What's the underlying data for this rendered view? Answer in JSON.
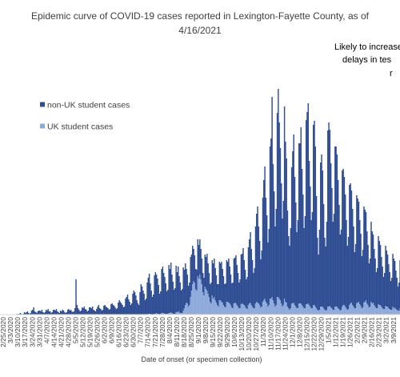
{
  "chart_data": {
    "type": "stacked_bar",
    "title": [
      "Epidemic curve of COVID-19 cases reported in Lexington-Fayette County, as of",
      "4/16/2021"
    ],
    "annotation": [
      "Likely to increase",
      "delays in tes",
      "r"
    ],
    "x_label": "Date of onset (or specimen collection)",
    "ylim": [
      0,
      300
    ],
    "categories": [
      "2/25/2020",
      null,
      null,
      null,
      null,
      null,
      null,
      "3/3/2020",
      null,
      null,
      null,
      null,
      null,
      null,
      "3/10/2020",
      null,
      null,
      null,
      null,
      null,
      null,
      "3/17/2020",
      null,
      null,
      null,
      null,
      null,
      null,
      "3/24/2020",
      null,
      null,
      null,
      null,
      null,
      null,
      "3/31/2020",
      null,
      null,
      null,
      null,
      null,
      null,
      "4/7/2020",
      null,
      null,
      null,
      null,
      null,
      null,
      "4/14/2020",
      null,
      null,
      null,
      null,
      null,
      null,
      "4/21/2020",
      null,
      null,
      null,
      null,
      null,
      null,
      "4/28/2020",
      null,
      null,
      null,
      null,
      null,
      null,
      "5/5/2020",
      null,
      null,
      null,
      null,
      null,
      null,
      "5/12/2020",
      null,
      null,
      null,
      null,
      null,
      null,
      "5/19/2020",
      null,
      null,
      null,
      null,
      null,
      null,
      "5/26/2020",
      null,
      null,
      null,
      null,
      null,
      null,
      "6/2/2020",
      null,
      null,
      null,
      null,
      null,
      null,
      "6/9/2020",
      null,
      null,
      null,
      null,
      null,
      null,
      "6/16/2020",
      null,
      null,
      null,
      null,
      null,
      null,
      "6/23/2020",
      null,
      null,
      null,
      null,
      null,
      null,
      "6/30/2020",
      null,
      null,
      null,
      null,
      null,
      null,
      "7/7/2020",
      null,
      null,
      null,
      null,
      null,
      null,
      "7/14/2020",
      null,
      null,
      null,
      null,
      null,
      null,
      "7/21/2020",
      null,
      null,
      null,
      null,
      null,
      null,
      "7/28/2020",
      null,
      null,
      null,
      null,
      null,
      null,
      "8/4/2020",
      null,
      null,
      null,
      null,
      null,
      null,
      "8/11/2020",
      null,
      null,
      null,
      null,
      null,
      null,
      "8/18/2020",
      null,
      null,
      null,
      null,
      null,
      null,
      "8/25/2020",
      null,
      null,
      null,
      null,
      null,
      null,
      "9/1/2020",
      null,
      null,
      null,
      null,
      null,
      null,
      "9/8/2020",
      null,
      null,
      null,
      null,
      null,
      null,
      "9/15/2020",
      null,
      null,
      null,
      null,
      null,
      null,
      "9/22/2020",
      null,
      null,
      null,
      null,
      null,
      null,
      "9/29/2020",
      null,
      null,
      null,
      null,
      null,
      null,
      "10/6/2020",
      null,
      null,
      null,
      null,
      null,
      null,
      "10/13/2020",
      null,
      null,
      null,
      null,
      null,
      null,
      "10/20/2020",
      null,
      null,
      null,
      null,
      null,
      null,
      "10/27/2020",
      null,
      null,
      null,
      null,
      null,
      null,
      "11/3/2020",
      null,
      null,
      null,
      null,
      null,
      null,
      "11/10/2020",
      null,
      null,
      null,
      null,
      null,
      null,
      "11/17/2020",
      null,
      null,
      null,
      null,
      null,
      null,
      "11/24/2020",
      null,
      null,
      null,
      null,
      null,
      null,
      "12/1/2020",
      null,
      null,
      null,
      null,
      null,
      null,
      "12/8/2020",
      null,
      null,
      null,
      null,
      null,
      null,
      "12/15/2020",
      null,
      null,
      null,
      null,
      null,
      null,
      "12/22/2020",
      null,
      null,
      null,
      null,
      null,
      null,
      "12/29/2020",
      null,
      null,
      null,
      null,
      null,
      null,
      "1/5/2021",
      null,
      null,
      null,
      null,
      null,
      null,
      "1/12/2021",
      null,
      null,
      null,
      null,
      null,
      null,
      "1/19/2021",
      null,
      null,
      null,
      null,
      null,
      null,
      "1/26/2021",
      null,
      null,
      null,
      null,
      null,
      null,
      "2/2/2021",
      null,
      null,
      null,
      null,
      null,
      null,
      "2/9/2021",
      null,
      null,
      null,
      null,
      null,
      null,
      "2/16/2021",
      null,
      null,
      null,
      null,
      null,
      null,
      "2/23/2021",
      null,
      null,
      null,
      null,
      null,
      null,
      "3/2/2021",
      null,
      null,
      null,
      null,
      null,
      null,
      "3/9/2021",
      null,
      null,
      null,
      null,
      null,
      null
    ],
    "series": [
      {
        "name": "non-UK student cases",
        "color": "#2f4d93",
        "values": [
          0,
          0,
          0,
          0,
          0,
          0,
          0,
          0,
          0,
          0,
          0,
          0,
          0,
          1,
          0,
          1,
          2,
          1,
          0,
          1,
          3,
          2,
          3,
          4,
          2,
          1,
          2,
          5,
          6,
          9,
          4,
          3,
          2,
          4,
          5,
          5,
          4,
          6,
          3,
          2,
          3,
          6,
          5,
          7,
          4,
          4,
          2,
          3,
          6,
          6,
          5,
          7,
          4,
          3,
          2,
          5,
          4,
          6,
          5,
          3,
          2,
          3,
          6,
          7,
          5,
          6,
          4,
          3,
          4,
          8,
          44,
          12,
          8,
          6,
          4,
          5,
          9,
          8,
          10,
          7,
          6,
          4,
          5,
          9,
          9,
          8,
          10,
          6,
          5,
          4,
          7,
          10,
          12,
          8,
          7,
          5,
          6,
          11,
          12,
          10,
          9,
          8,
          6,
          7,
          13,
          14,
          12,
          11,
          9,
          7,
          8,
          15,
          18,
          16,
          14,
          12,
          9,
          10,
          20,
          22,
          25,
          19,
          16,
          12,
          14,
          26,
          30,
          28,
          24,
          18,
          14,
          12,
          28,
          38,
          35,
          30,
          26,
          18,
          20,
          40,
          45,
          50,
          38,
          30,
          22,
          25,
          48,
          52,
          48,
          44,
          36,
          26,
          28,
          55,
          58,
          50,
          46,
          38,
          28,
          30,
          60,
          55,
          62,
          48,
          40,
          30,
          32,
          58,
          50,
          56,
          45,
          38,
          28,
          30,
          54,
          48,
          52,
          42,
          36,
          26,
          28,
          50,
          45,
          48,
          40,
          34,
          25,
          26,
          46,
          42,
          44,
          38,
          32,
          24,
          22,
          40,
          40,
          46,
          38,
          30,
          22,
          26,
          44,
          44,
          48,
          40,
          34,
          26,
          28,
          48,
          46,
          50,
          42,
          36,
          28,
          30,
          52,
          50,
          55,
          46,
          38,
          30,
          32,
          56,
          56,
          60,
          50,
          42,
          32,
          36,
          62,
          62,
          70,
          56,
          46,
          36,
          40,
          72,
          80,
          88,
          70,
          58,
          44,
          50,
          96,
          110,
          120,
          96,
          80,
          60,
          70,
          130,
          150,
          165,
          130,
          110,
          80,
          95,
          190,
          200,
          250,
          170,
          140,
          100,
          120,
          230,
          260,
          220,
          190,
          150,
          110,
          130,
          240,
          200,
          180,
          120,
          90,
          80,
          100,
          170,
          190,
          210,
          160,
          130,
          95,
          110,
          200,
          200,
          220,
          170,
          140,
          100,
          115,
          230,
          240,
          250,
          180,
          150,
          110,
          120,
          225,
          230,
          200,
          140,
          90,
          70,
          100,
          180,
          190,
          170,
          130,
          90,
          80,
          110,
          220,
          230,
          220,
          180,
          150,
          110,
          120,
          200,
          200,
          190,
          160,
          130,
          95,
          100,
          170,
          170,
          160,
          140,
          110,
          80,
          90,
          150,
          150,
          140,
          120,
          100,
          70,
          80,
          135,
          130,
          125,
          105,
          90,
          65,
          72,
          120,
          115,
          110,
          90,
          75,
          55,
          60,
          100,
          90,
          85,
          70,
          60,
          45,
          50,
          85,
          80,
          75,
          62,
          52,
          40,
          45,
          75,
          70,
          65,
          55,
          46,
          36,
          40,
          66,
          62,
          58,
          48,
          40,
          30,
          35,
          60
        ]
      },
      {
        "name": "UK student cases",
        "color": "#8eaadb",
        "values": [
          0,
          0,
          0,
          0,
          0,
          0,
          0,
          0,
          0,
          0,
          0,
          0,
          0,
          0,
          0,
          0,
          0,
          0,
          0,
          0,
          0,
          0,
          0,
          0,
          0,
          0,
          0,
          0,
          0,
          0,
          0,
          0,
          0,
          0,
          0,
          0,
          0,
          0,
          0,
          0,
          0,
          0,
          0,
          0,
          0,
          0,
          0,
          0,
          0,
          0,
          0,
          0,
          0,
          0,
          0,
          0,
          0,
          0,
          0,
          0,
          0,
          0,
          0,
          0,
          0,
          0,
          0,
          0,
          0,
          0,
          0,
          0,
          0,
          0,
          0,
          0,
          0,
          0,
          0,
          0,
          0,
          0,
          0,
          0,
          0,
          0,
          0,
          0,
          0,
          0,
          0,
          0,
          0,
          0,
          0,
          0,
          0,
          0,
          0,
          0,
          0,
          0,
          0,
          0,
          0,
          0,
          0,
          0,
          0,
          0,
          0,
          0,
          0,
          0,
          0,
          0,
          0,
          0,
          0,
          0,
          0,
          0,
          0,
          0,
          0,
          0,
          0,
          0,
          0,
          0,
          0,
          0,
          0,
          0,
          0,
          0,
          0,
          0,
          0,
          0,
          1,
          1,
          1,
          0,
          0,
          0,
          1,
          1,
          2,
          1,
          1,
          0,
          1,
          2,
          2,
          2,
          1,
          1,
          1,
          1,
          2,
          2,
          3,
          2,
          1,
          1,
          1,
          3,
          3,
          4,
          3,
          2,
          2,
          2,
          5,
          8,
          12,
          15,
          14,
          10,
          12,
          22,
          30,
          38,
          42,
          40,
          32,
          30,
          48,
          45,
          50,
          44,
          38,
          28,
          24,
          35,
          32,
          30,
          26,
          22,
          16,
          14,
          24,
          20,
          22,
          18,
          15,
          12,
          10,
          18,
          18,
          16,
          15,
          12,
          10,
          9,
          16,
          16,
          15,
          14,
          12,
          9,
          8,
          14,
          15,
          14,
          12,
          10,
          8,
          8,
          13,
          14,
          13,
          12,
          10,
          8,
          7,
          12,
          14,
          15,
          12,
          10,
          8,
          8,
          14,
          16,
          15,
          14,
          12,
          9,
          10,
          16,
          18,
          20,
          16,
          14,
          10,
          12,
          20,
          20,
          22,
          18,
          14,
          10,
          12,
          22,
          22,
          20,
          18,
          14,
          10,
          12,
          20,
          16,
          15,
          10,
          8,
          6,
          8,
          14,
          14,
          15,
          12,
          10,
          8,
          8,
          14,
          14,
          14,
          12,
          10,
          8,
          8,
          13,
          13,
          14,
          12,
          10,
          8,
          8,
          12,
          12,
          10,
          8,
          6,
          5,
          6,
          10,
          10,
          10,
          8,
          6,
          5,
          6,
          10,
          10,
          11,
          9,
          8,
          6,
          6,
          10,
          10,
          10,
          8,
          7,
          5,
          6,
          10,
          12,
          12,
          10,
          8,
          6,
          7,
          12,
          14,
          15,
          12,
          10,
          8,
          8,
          14,
          15,
          16,
          13,
          11,
          8,
          9,
          15,
          16,
          18,
          14,
          12,
          9,
          10,
          16,
          14,
          15,
          12,
          10,
          8,
          8,
          13,
          12,
          12,
          10,
          8,
          7,
          7,
          11,
          10,
          10,
          8,
          7,
          6,
          6,
          10,
          8,
          9,
          7,
          6,
          5,
          5,
          8
        ]
      }
    ]
  }
}
